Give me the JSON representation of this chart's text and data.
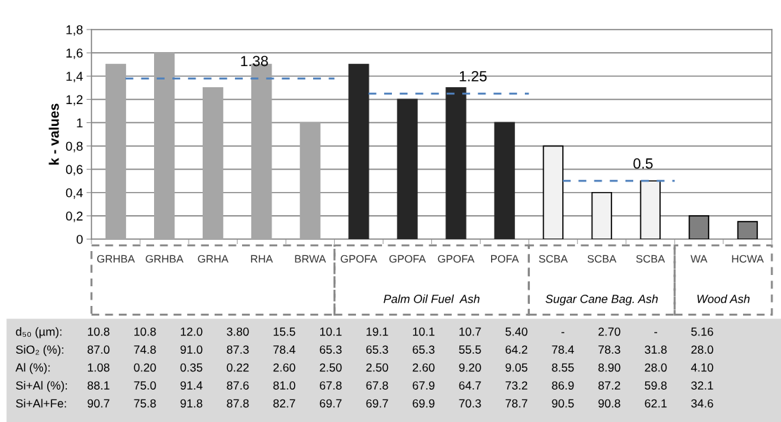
{
  "chart_data": {
    "type": "bar",
    "ylabel": "k - values",
    "categories": [
      "GRHBA",
      "GRHBA",
      "GRHA",
      "RHA",
      "BRWA",
      "GPOFA",
      "GPOFA",
      "GPOFA",
      "POFA",
      "SCBA",
      "SCBA",
      "SCBA",
      "WA",
      "HCWA"
    ],
    "values": [
      1.5,
      1.6,
      1.3,
      1.5,
      1.0,
      1.5,
      1.2,
      1.3,
      1.0,
      0.8,
      0.4,
      0.5,
      0.2,
      0.15
    ],
    "colors": [
      "#a6a6a6",
      "#a6a6a6",
      "#a6a6a6",
      "#a6a6a6",
      "#a6a6a6",
      "#262626",
      "#262626",
      "#262626",
      "#262626",
      "#f2f2f2",
      "#f2f2f2",
      "#f2f2f2",
      "#808080",
      "#808080"
    ],
    "ylim": [
      0,
      1.8
    ],
    "yticks": [
      0,
      {
        "value": 0.2,
        "label": "0,2"
      },
      {
        "value": 0.4,
        "label": "0,4"
      },
      {
        "value": 0.6,
        "label": "0,6"
      },
      {
        "value": 0.8,
        "label": "0,8"
      },
      1,
      {
        "value": 1.2,
        "label": "1,2"
      },
      {
        "value": 1.4,
        "label": "1,4"
      },
      {
        "value": 1.6,
        "label": "1,6"
      },
      {
        "value": 1.8,
        "label": "1,8"
      }
    ],
    "grid": "y",
    "ref_lines": [
      {
        "axis": "y",
        "value": 1.38,
        "label": "1.38",
        "color": "#4f81bd",
        "line_style": "dashed"
      },
      {
        "axis": "y",
        "value": 1.25,
        "label": "1.25",
        "color": "#4f81bd",
        "line_style": "dashed"
      },
      {
        "axis": "y",
        "value": 0.5,
        "label": "0.5",
        "color": "#4f81bd",
        "line_style": "dashed"
      }
    ],
    "annotations": [
      "Palm Oil Fuel  Ash",
      "Sugar Cane Bag. Ash",
      "Wood Ash",
      "d₅₀ (µm):",
      "10.8",
      "10.8",
      "12.0",
      "3.80",
      "15.5",
      "10.1",
      "19.1",
      "10.1",
      "10.7",
      "5.40",
      "-",
      "2.70",
      "-",
      "5.16",
      "SiO₂ (%):",
      "87.0",
      "74.8",
      "91.0",
      "87.3",
      "78.4",
      "65.3",
      "65.3",
      "65.3",
      "55.5",
      "64.2",
      "78.4",
      "78.3",
      "31.8",
      "28.0",
      "Al (%):",
      "1.08",
      "0.20",
      "0.35",
      "0.22",
      "2.60",
      "2.50",
      "2.50",
      "2.60",
      "9.20",
      "9.05",
      "8.55",
      "8.90",
      "28.0",
      "4.10",
      "Si+Al (%):",
      "88.1",
      "75.0",
      "91.4",
      "87.6",
      "81.0",
      "67.8",
      "67.8",
      "67.9",
      "64.7",
      "73.2",
      "86.9",
      "87.2",
      "59.8",
      "32.1",
      "Si+Al+Fe:",
      "90.7",
      "75.8",
      "91.8",
      "87.8",
      "82.7",
      "69.7",
      "69.7",
      "69.9",
      "70.3",
      "78.7",
      "90.5",
      "90.8",
      "62.1",
      "34.6"
    ]
  }
}
